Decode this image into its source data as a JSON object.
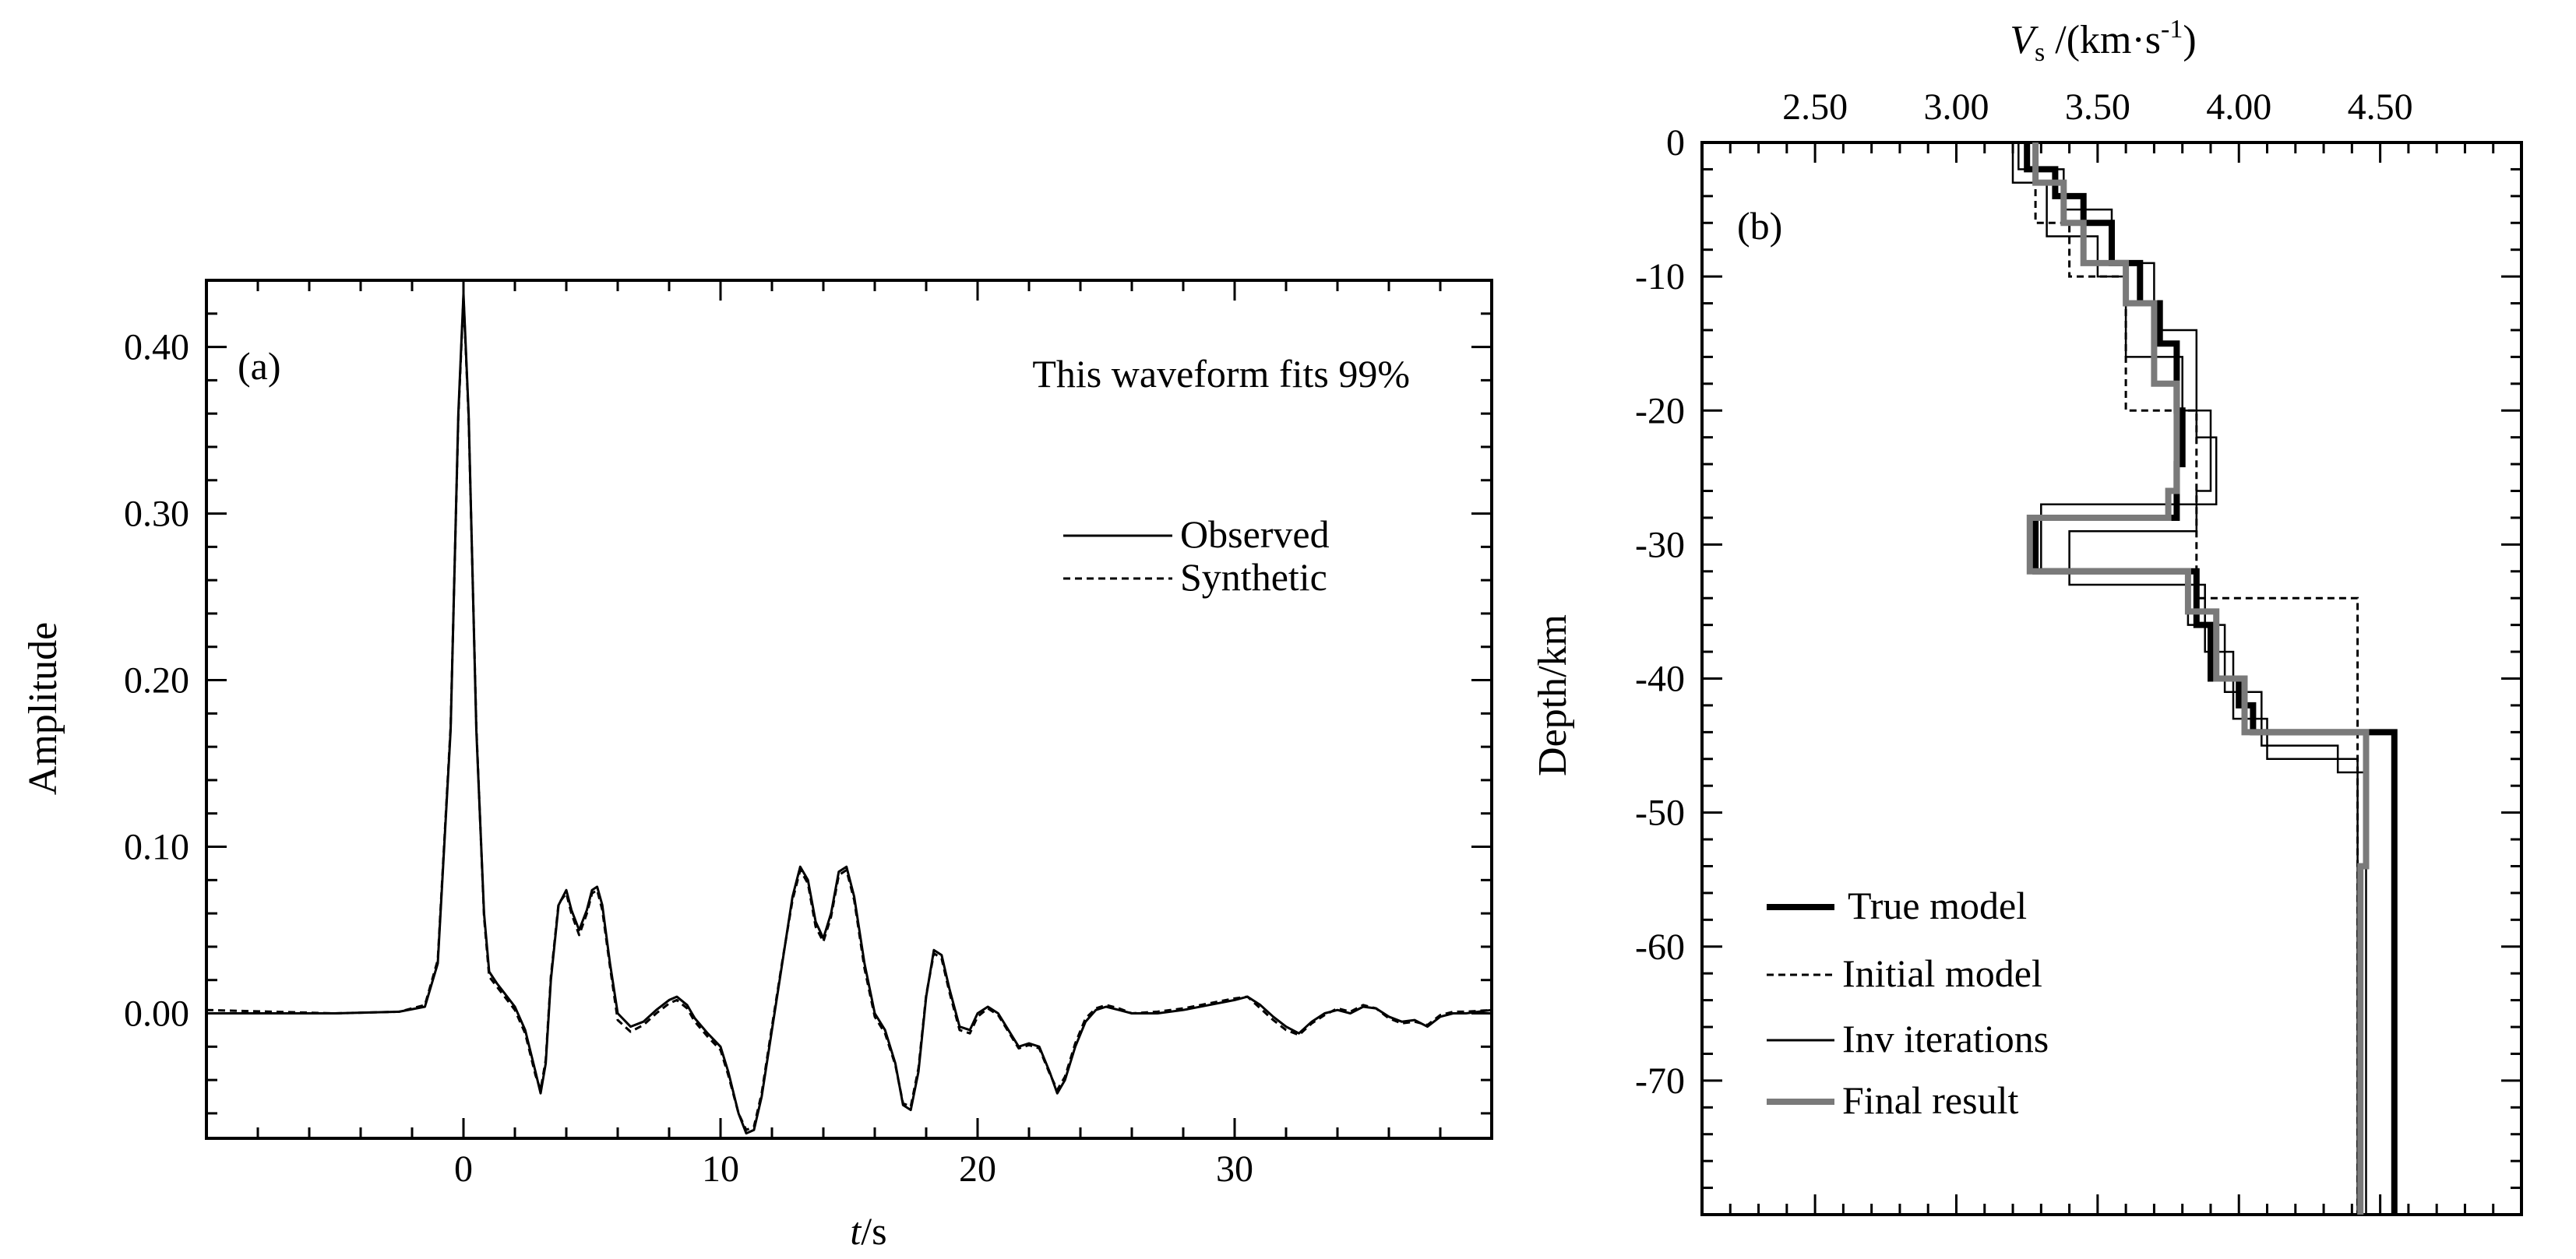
{
  "chart_data": [
    {
      "type": "line",
      "panel_label": "(a)",
      "annotation": "This waveform fits 99%",
      "xlabel_italic": "t",
      "xlabel_rest": "/s",
      "ylabel": "Amplitude",
      "xlim": [
        -10,
        40
      ],
      "ylim": [
        -0.075,
        0.44
      ],
      "x_ticks": [
        "0",
        "10",
        "20",
        "30"
      ],
      "y_ticks": [
        "0.40",
        "0.30",
        "0.20",
        "0.10",
        "0.00"
      ],
      "legend": {
        "observed": "Observed",
        "synthetic": "Synthetic"
      },
      "series": [
        {
          "name": "Observed",
          "style": "solid",
          "x": [
            -10,
            -5,
            -2.5,
            -1.5,
            -1,
            -0.5,
            -0.2,
            0,
            0.2,
            0.5,
            0.8,
            1.0,
            1.3,
            1.6,
            2.0,
            2.4,
            2.8,
            3.0,
            3.2,
            3.4,
            3.7,
            4.0,
            4.2,
            4.5,
            4.8,
            5.0,
            5.2,
            5.4,
            5.7,
            6.0,
            6.5,
            7.0,
            7.5,
            8.0,
            8.3,
            8.7,
            9.0,
            9.5,
            10.0,
            10.3,
            10.7,
            11.0,
            11.3,
            11.6,
            12.0,
            12.4,
            12.8,
            13.1,
            13.4,
            13.7,
            14.0,
            14.3,
            14.6,
            14.9,
            15.2,
            15.6,
            16.0,
            16.4,
            16.8,
            17.1,
            17.4,
            17.7,
            18.0,
            18.3,
            18.6,
            18.9,
            19.3,
            19.7,
            20.0,
            20.4,
            20.8,
            21.2,
            21.6,
            22.0,
            22.4,
            22.8,
            23.1,
            23.4,
            23.8,
            24.2,
            24.6,
            25.0,
            25.5,
            26.0,
            27.0,
            28.0,
            29.0,
            30.0,
            30.5,
            31.0,
            31.5,
            32.0,
            32.5,
            33.0,
            33.5,
            34.0,
            34.5,
            35.0,
            35.5,
            36.0,
            36.5,
            37.0,
            37.5,
            38.0,
            38.5,
            39.0,
            40.0
          ],
          "y": [
            0.0,
            0.0,
            0.001,
            0.004,
            0.03,
            0.17,
            0.36,
            0.432,
            0.36,
            0.17,
            0.06,
            0.025,
            0.018,
            0.012,
            0.004,
            -0.01,
            -0.035,
            -0.048,
            -0.03,
            0.02,
            0.065,
            0.074,
            0.062,
            0.05,
            0.062,
            0.074,
            0.076,
            0.065,
            0.03,
            0.0,
            -0.008,
            -0.005,
            0.002,
            0.008,
            0.01,
            0.005,
            -0.003,
            -0.012,
            -0.02,
            -0.035,
            -0.06,
            -0.072,
            -0.07,
            -0.05,
            -0.01,
            0.03,
            0.07,
            0.088,
            0.08,
            0.055,
            0.045,
            0.06,
            0.085,
            0.088,
            0.07,
            0.03,
            0.0,
            -0.01,
            -0.03,
            -0.055,
            -0.058,
            -0.035,
            0.01,
            0.038,
            0.035,
            0.015,
            -0.008,
            -0.01,
            0.0,
            0.004,
            0.0,
            -0.01,
            -0.02,
            -0.018,
            -0.02,
            -0.035,
            -0.048,
            -0.04,
            -0.02,
            -0.005,
            0.002,
            0.004,
            0.002,
            0.0,
            0.0,
            0.002,
            0.005,
            0.008,
            0.01,
            0.005,
            -0.002,
            -0.008,
            -0.012,
            -0.005,
            0.0,
            0.002,
            0.0,
            0.004,
            0.003,
            -0.002,
            -0.005,
            -0.004,
            -0.008,
            -0.002,
            0.0,
            0.0,
            0.002
          ]
        },
        {
          "name": "Synthetic",
          "style": "dashed",
          "x": [
            -10,
            -5,
            -2.5,
            -1.5,
            -1,
            -0.5,
            -0.2,
            0,
            0.2,
            0.5,
            0.8,
            1.0,
            1.3,
            1.6,
            2.0,
            2.4,
            2.8,
            3.0,
            3.2,
            3.4,
            3.7,
            4.0,
            4.2,
            4.5,
            4.8,
            5.0,
            5.2,
            5.4,
            5.7,
            6.0,
            6.5,
            7.0,
            7.5,
            8.0,
            8.3,
            8.7,
            9.0,
            9.5,
            10.0,
            10.3,
            10.7,
            11.0,
            11.3,
            11.6,
            12.0,
            12.4,
            12.8,
            13.1,
            13.4,
            13.7,
            14.0,
            14.3,
            14.6,
            14.9,
            15.2,
            15.6,
            16.0,
            16.4,
            16.8,
            17.1,
            17.4,
            17.7,
            18.0,
            18.3,
            18.6,
            18.9,
            19.3,
            19.7,
            20.0,
            20.4,
            20.8,
            21.2,
            21.6,
            22.0,
            22.4,
            22.8,
            23.1,
            23.4,
            23.8,
            24.2,
            24.6,
            25.0,
            25.5,
            26.0,
            27.0,
            28.0,
            29.0,
            30.0,
            30.5,
            31.0,
            31.5,
            32.0,
            32.5,
            33.0,
            33.5,
            34.0,
            34.5,
            35.0,
            35.5,
            36.0,
            36.5,
            37.0,
            37.5,
            38.0,
            38.5,
            39.0,
            40.0
          ],
          "y": [
            0.002,
            0.0,
            0.001,
            0.005,
            0.032,
            0.172,
            0.358,
            0.43,
            0.358,
            0.172,
            0.058,
            0.022,
            0.016,
            0.01,
            0.002,
            -0.012,
            -0.037,
            -0.046,
            -0.028,
            0.022,
            0.066,
            0.072,
            0.06,
            0.047,
            0.06,
            0.072,
            0.074,
            0.062,
            0.028,
            -0.004,
            -0.011,
            -0.007,
            0.0,
            0.006,
            0.008,
            0.003,
            -0.005,
            -0.014,
            -0.022,
            -0.037,
            -0.06,
            -0.07,
            -0.068,
            -0.048,
            -0.008,
            0.031,
            0.068,
            0.086,
            0.078,
            0.052,
            0.043,
            0.058,
            0.083,
            0.086,
            0.068,
            0.027,
            -0.002,
            -0.012,
            -0.031,
            -0.054,
            -0.056,
            -0.033,
            0.011,
            0.036,
            0.033,
            0.013,
            -0.01,
            -0.012,
            -0.002,
            0.003,
            -0.001,
            -0.011,
            -0.021,
            -0.019,
            -0.021,
            -0.036,
            -0.046,
            -0.038,
            -0.018,
            -0.003,
            0.003,
            0.005,
            0.003,
            0.0,
            0.001,
            0.003,
            0.006,
            0.009,
            0.01,
            0.003,
            -0.004,
            -0.01,
            -0.013,
            -0.006,
            -0.001,
            0.003,
            0.001,
            0.005,
            0.003,
            -0.003,
            -0.006,
            -0.005,
            -0.007,
            -0.001,
            0.001,
            0.001,
            0.002
          ]
        }
      ]
    },
    {
      "type": "line",
      "panel_label": "(b)",
      "xlabel_italic": "V",
      "xlabel_sub": "s",
      "xlabel_rest": " /(km·s",
      "xlabel_sup": "-1",
      "xlabel_close": ")",
      "ylabel": "Depth/km",
      "xlim": [
        2.1,
        5.0
      ],
      "ylim": [
        -80,
        0
      ],
      "x_ticks": [
        "2.50",
        "3.00",
        "3.50",
        "4.00",
        "4.50"
      ],
      "y_ticks": [
        "0",
        "-10",
        "-20",
        "-30",
        "-40",
        "-50",
        "-60",
        "-70"
      ],
      "legend": [
        "True model",
        "Initial model",
        "Inv iterations",
        "Final result"
      ],
      "series": [
        {
          "name": "True model",
          "style": "thick-black",
          "v": [
            3.25,
            3.25,
            3.35,
            3.35,
            3.45,
            3.45,
            3.55,
            3.55,
            3.65,
            3.65,
            3.72,
            3.72,
            3.78,
            3.78,
            3.8,
            3.8,
            3.78,
            3.78,
            3.28,
            3.28,
            3.85,
            3.85,
            3.9,
            3.9,
            4.0,
            4.0,
            4.05,
            4.05,
            4.55,
            4.55
          ],
          "depth": [
            0,
            -2,
            -2,
            -4,
            -4,
            -6,
            -6,
            -9,
            -9,
            -12,
            -12,
            -15,
            -15,
            -20,
            -20,
            -24,
            -24,
            -28,
            -28,
            -32,
            -32,
            -36,
            -36,
            -40,
            -40,
            -42,
            -42,
            -44,
            -44,
            -80
          ]
        },
        {
          "name": "Initial model",
          "style": "dashed",
          "v": [
            3.28,
            3.28,
            3.4,
            3.4,
            3.6,
            3.6,
            3.85,
            3.85,
            4.42,
            4.42
          ],
          "depth": [
            0,
            -6,
            -6,
            -10,
            -10,
            -20,
            -20,
            -34,
            -34,
            -80
          ]
        },
        {
          "name": "Inv iterations",
          "style": "thin",
          "v": [
            3.2,
            3.2,
            3.32,
            3.32,
            3.5,
            3.5,
            3.6,
            3.6,
            3.8,
            3.8,
            3.9,
            3.9,
            3.85,
            3.85,
            3.4,
            3.4,
            3.88,
            3.88,
            3.98,
            3.98,
            4.1,
            4.1,
            4.42,
            4.42
          ],
          "depth": [
            0,
            -3,
            -3,
            -7,
            -7,
            -10,
            -10,
            -16,
            -16,
            -20,
            -20,
            -26,
            -26,
            -29,
            -29,
            -33,
            -33,
            -38,
            -38,
            -43,
            -43,
            -46,
            -46,
            -80
          ]
        },
        {
          "name": "Inv iterations",
          "style": "thin",
          "v": [
            3.22,
            3.22,
            3.38,
            3.38,
            3.55,
            3.55,
            3.7,
            3.7,
            3.85,
            3.85,
            3.92,
            3.92,
            3.3,
            3.3,
            3.82,
            3.82,
            3.95,
            3.95,
            4.08,
            4.08,
            4.35,
            4.35,
            4.45,
            4.45
          ],
          "depth": [
            0,
            -2,
            -2,
            -5,
            -5,
            -9,
            -9,
            -14,
            -14,
            -22,
            -22,
            -27,
            -27,
            -32,
            -32,
            -36,
            -36,
            -41,
            -41,
            -45,
            -45,
            -47,
            -47,
            -80
          ]
        },
        {
          "name": "Final result",
          "style": "thick-gray",
          "v": [
            3.28,
            3.28,
            3.38,
            3.38,
            3.45,
            3.45,
            3.6,
            3.6,
            3.7,
            3.7,
            3.78,
            3.78,
            3.75,
            3.75,
            3.26,
            3.26,
            3.82,
            3.82,
            3.92,
            3.92,
            4.02,
            4.02,
            4.45,
            4.45,
            4.43,
            4.43
          ],
          "depth": [
            0,
            -3,
            -3,
            -6,
            -6,
            -9,
            -9,
            -12,
            -12,
            -18,
            -18,
            -26,
            -26,
            -28,
            -28,
            -32,
            -32,
            -35,
            -35,
            -40,
            -40,
            -44,
            -44,
            -54,
            -54,
            -80
          ]
        }
      ]
    }
  ]
}
